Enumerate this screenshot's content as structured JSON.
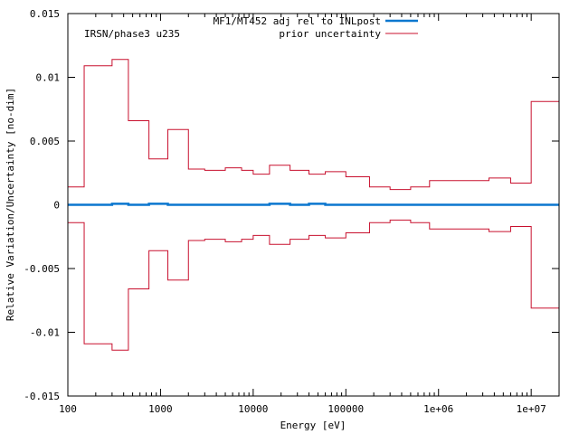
{
  "chart_data": {
    "type": "line",
    "title": "",
    "xlabel": "Energy [eV]",
    "ylabel": "Relative Variation/Uncertainty [no-dim]",
    "x_scale": "log",
    "xlim": [
      100,
      20000000
    ],
    "ylim": [
      -0.015,
      0.015
    ],
    "grid": false,
    "legend_position": "top-center",
    "annotation": "IRSN/phase3 u235",
    "x_tick_labels": [
      "100",
      "1000",
      "10000",
      "100000",
      "1e+06",
      "1e+07"
    ],
    "y_tick_labels": [
      "0.015",
      "0.01",
      "0.005",
      "0",
      "-0.005",
      "-0.01",
      "-0.015"
    ],
    "bin_edges": [
      100,
      150,
      300,
      450,
      750,
      1200,
      2000,
      3000,
      5000,
      7500,
      10000,
      15000,
      25000,
      40000,
      60000,
      100000,
      180000,
      300000,
      500000,
      800000,
      1300000,
      3500000,
      6000000,
      10000000,
      20000000
    ],
    "series": [
      {
        "name": "MF1/MT452 adj rel to INLpost",
        "color": "#0b77cf",
        "style": "steps",
        "values": [
          0,
          0,
          8e-05,
          0,
          8e-05,
          0,
          0,
          0,
          0,
          0,
          0,
          8e-05,
          0,
          8e-05,
          0,
          0,
          0,
          0,
          0,
          0,
          0,
          0,
          0,
          0
        ]
      },
      {
        "name": "prior uncertainty",
        "color": "#c8102e",
        "style": "steps-symmetric",
        "values": [
          0.0014,
          0.0109,
          0.0114,
          0.0066,
          0.0036,
          0.0059,
          0.0028,
          0.0027,
          0.0029,
          0.0027,
          0.0024,
          0.0031,
          0.0027,
          0.0024,
          0.0026,
          0.0022,
          0.0014,
          0.0012,
          0.0014,
          0.0019,
          0.0019,
          0.0021,
          0.0017,
          0.0081
        ]
      }
    ]
  }
}
